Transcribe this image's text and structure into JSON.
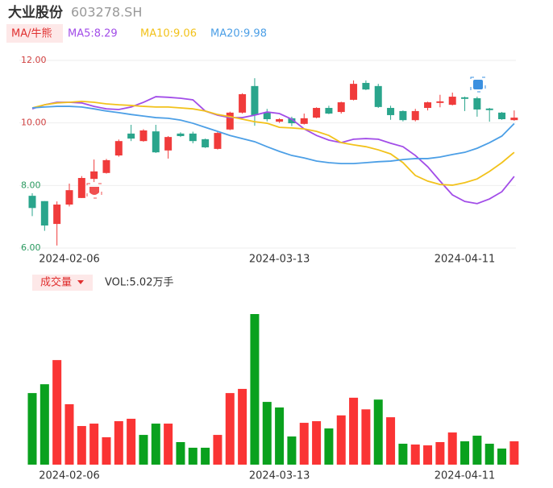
{
  "header": {
    "title": "大业股份",
    "code": "603278.SH",
    "indicator": "MA/牛熊",
    "volume_label": "成交量",
    "volume_value": "VOL:5.02万手"
  },
  "chart_data": [
    {
      "type": "candlestick",
      "categories": [
        null,
        null,
        null,
        "2024-02-06",
        null,
        null,
        null,
        null,
        null,
        null,
        null,
        null,
        null,
        null,
        null,
        null,
        null,
        null,
        null,
        null,
        "2024-03-13",
        null,
        null,
        null,
        null,
        null,
        null,
        null,
        null,
        null,
        null,
        null,
        null,
        null,
        null,
        "2024-04-11",
        null,
        null,
        null,
        null
      ],
      "open": [
        7.67,
        7.5,
        6.77,
        7.39,
        7.6,
        8.21,
        8.4,
        8.96,
        9.66,
        9.42,
        9.73,
        9.12,
        9.66,
        9.66,
        9.48,
        9.17,
        9.79,
        10.33,
        11.18,
        10.33,
        10.04,
        10.15,
        9.97,
        10.17,
        10.48,
        10.35,
        10.74,
        11.28,
        11.18,
        10.48,
        10.38,
        10.09,
        10.48,
        10.64,
        10.58,
        10.82,
        10.79,
        10.46,
        10.33,
        10.09
      ],
      "high": [
        7.75,
        7.5,
        7.49,
        8.06,
        8.3,
        8.83,
        8.85,
        9.47,
        9.94,
        9.8,
        9.94,
        9.58,
        9.7,
        9.72,
        9.5,
        9.73,
        10.36,
        10.95,
        11.43,
        10.45,
        10.15,
        10.2,
        10.3,
        10.5,
        10.55,
        10.68,
        11.36,
        11.36,
        11.25,
        10.55,
        10.4,
        10.45,
        10.68,
        10.9,
        10.97,
        10.84,
        10.84,
        10.48,
        10.35,
        10.4
      ],
      "low": [
        7.02,
        6.55,
        6.08,
        7.33,
        7.6,
        8.11,
        8.38,
        8.92,
        9.42,
        9.4,
        9.04,
        8.86,
        9.55,
        9.35,
        9.2,
        9.15,
        9.77,
        10.3,
        9.91,
        10.05,
        10.0,
        9.9,
        9.95,
        10.15,
        10.28,
        10.3,
        10.72,
        11.05,
        10.48,
        10.1,
        10.05,
        10.05,
        10.4,
        10.5,
        10.56,
        10.38,
        10.2,
        10.04,
        10.1,
        10.07
      ],
      "close": [
        7.28,
        6.72,
        7.39,
        7.85,
        8.24,
        8.45,
        8.81,
        9.42,
        9.5,
        9.76,
        9.06,
        9.55,
        9.58,
        9.42,
        9.22,
        9.68,
        10.33,
        10.92,
        10.25,
        10.12,
        10.12,
        9.99,
        10.15,
        10.48,
        10.3,
        10.66,
        11.25,
        11.07,
        10.51,
        10.25,
        10.09,
        10.38,
        10.66,
        10.69,
        10.84,
        10.77,
        10.43,
        10.41,
        10.12,
        10.17
      ],
      "up_color": "#f03b3b",
      "down_color": "#2aa58c",
      "series": [
        {
          "name": "MA5",
          "legend": "MA5:8.29",
          "color": "#a24de8",
          "values": [
            10.45,
            10.58,
            10.66,
            10.66,
            10.64,
            10.53,
            10.45,
            10.43,
            10.51,
            10.66,
            10.84,
            10.82,
            10.79,
            10.74,
            10.38,
            10.25,
            10.17,
            10.17,
            10.25,
            10.35,
            10.3,
            10.12,
            9.81,
            9.6,
            9.45,
            9.37,
            9.48,
            9.5,
            9.48,
            9.35,
            9.24,
            8.96,
            8.6,
            8.14,
            7.7,
            7.49,
            7.42,
            7.57,
            7.8,
            8.29
          ]
        },
        {
          "name": "MA10",
          "legend": "MA10:9.06",
          "color": "#f2c21b",
          "values": [
            10.48,
            10.58,
            10.64,
            10.66,
            10.69,
            10.66,
            10.61,
            10.58,
            10.56,
            10.53,
            10.51,
            10.51,
            10.48,
            10.45,
            10.38,
            10.27,
            10.2,
            10.12,
            10.04,
            9.99,
            9.86,
            9.84,
            9.81,
            9.73,
            9.6,
            9.37,
            9.3,
            9.24,
            9.14,
            9.01,
            8.73,
            8.32,
            8.14,
            8.03,
            8.01,
            8.09,
            8.21,
            8.45,
            8.73,
            9.06
          ]
        },
        {
          "name": "MA20",
          "legend": "MA20:9.98",
          "color": "#4c9fe6",
          "values": [
            10.48,
            10.51,
            10.53,
            10.53,
            10.51,
            10.45,
            10.38,
            10.33,
            10.27,
            10.22,
            10.17,
            10.15,
            10.09,
            9.99,
            9.86,
            9.73,
            9.6,
            9.5,
            9.4,
            9.24,
            9.09,
            8.96,
            8.88,
            8.78,
            8.73,
            8.7,
            8.7,
            8.73,
            8.76,
            8.78,
            8.83,
            8.86,
            8.86,
            8.91,
            8.99,
            9.06,
            9.19,
            9.37,
            9.58,
            9.98
          ]
        }
      ],
      "ylim": [
        6,
        12
      ],
      "yticks": [
        {
          "value": 6,
          "label": "6.00"
        },
        {
          "value": 8,
          "label": "8.00"
        },
        {
          "value": 10,
          "label": "10.00"
        },
        {
          "value": 12,
          "label": "12.00"
        }
      ],
      "grid": true
    },
    {
      "type": "bar",
      "values": [
        15.4,
        17.3,
        22.5,
        13.0,
        8.31,
        8.83,
        5.89,
        9.35,
        9.87,
        6.4,
        8.83,
        8.83,
        4.85,
        3.64,
        3.64,
        6.4,
        15.4,
        16.3,
        32.4,
        13.5,
        12.3,
        6.06,
        9.0,
        9.35,
        7.79,
        10.6,
        14.4,
        11.9,
        14.0,
        10.2,
        4.5,
        4.33,
        4.15,
        4.85,
        6.92,
        5.02,
        6.23,
        4.5,
        3.46,
        5.02
      ],
      "colors": [
        "#0aa11e",
        "#0aa11e",
        "#fa3434",
        "#fa3434",
        "#fa3434",
        "#fa3434",
        "#fa3434",
        "#fa3434",
        "#fa3434",
        "#0aa11e",
        "#0aa11e",
        "#fa3434",
        "#0aa11e",
        "#0aa11e",
        "#0aa11e",
        "#fa3434",
        "#fa3434",
        "#fa3434",
        "#0aa11e",
        "#0aa11e",
        "#0aa11e",
        "#0aa11e",
        "#fa3434",
        "#fa3434",
        "#0aa11e",
        "#fa3434",
        "#fa3434",
        "#fa3434",
        "#0aa11e",
        "#fa3434",
        "#0aa11e",
        "#fa3434",
        "#fa3434",
        "#fa3434",
        "#fa3434",
        "#0aa11e",
        "#0aa11e",
        "#0aa11e",
        "#0aa11e",
        "#fa3434"
      ]
    }
  ]
}
